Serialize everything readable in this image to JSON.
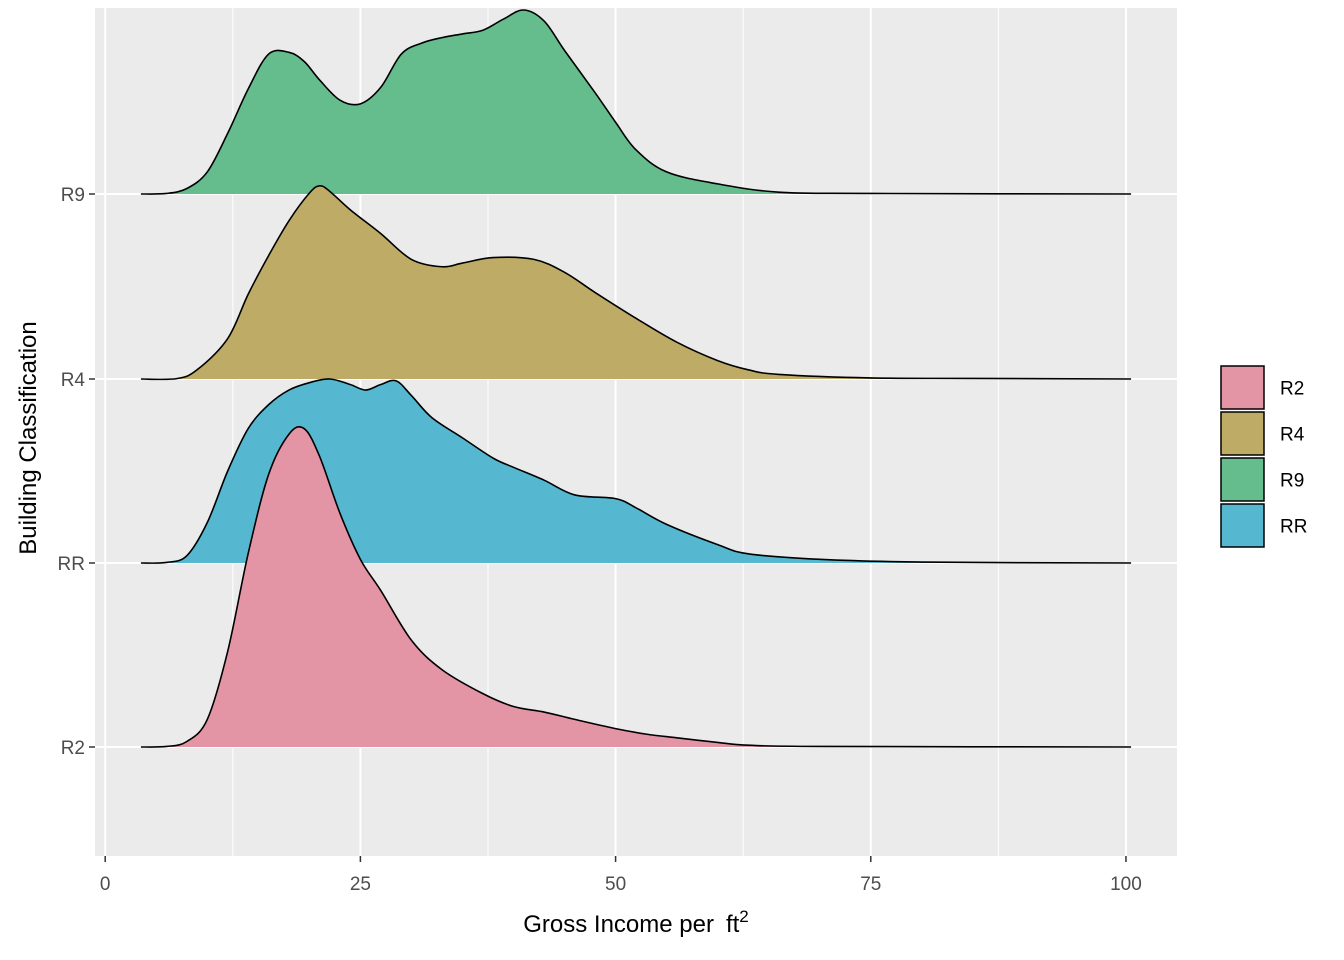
{
  "chart_data": {
    "type": "area",
    "subtype": "ridgeline-density",
    "title": "",
    "xlabel": "Gross Income per",
    "xlabel_unit": "ft",
    "xlabel_superscript": "2",
    "ylabel": "Building Classification",
    "xlim": [
      -1,
      105
    ],
    "x_ticks": [
      0,
      25,
      50,
      75,
      100
    ],
    "x_tick_labels": [
      "0",
      "25",
      "50",
      "75",
      "100"
    ],
    "categories": [
      "R2",
      "RR",
      "R4",
      "R9"
    ],
    "grid": true,
    "legend_position": "right",
    "legend_items": [
      "R2",
      "R4",
      "R9",
      "RR"
    ],
    "colors": {
      "R2": "#E495A5",
      "R4": "#BDAB66",
      "R9": "#65BC8C",
      "RR": "#55B8D0",
      "panel": "#EBEBEB",
      "grid": "#FFFFFF",
      "outline": "#000000"
    },
    "draw_order": [
      "R9",
      "R4",
      "RR",
      "R2"
    ],
    "series": [
      {
        "name": "R9",
        "baseline": "R9",
        "x": [
          3.5,
          6,
          8,
          10,
          12,
          14,
          16,
          18,
          19.5,
          21,
          23,
          25,
          27,
          29,
          31,
          33,
          35,
          37,
          39,
          41,
          43,
          45,
          48,
          50,
          52,
          55,
          60,
          66,
          75,
          100.5
        ],
        "y": [
          0,
          0.003,
          0.03,
          0.12,
          0.33,
          0.57,
          0.76,
          0.77,
          0.72,
          0.62,
          0.51,
          0.49,
          0.58,
          0.76,
          0.82,
          0.85,
          0.87,
          0.89,
          0.95,
          1.0,
          0.94,
          0.78,
          0.55,
          0.39,
          0.24,
          0.12,
          0.055,
          0.01,
          0.003,
          0
        ]
      },
      {
        "name": "R4",
        "baseline": "R4",
        "x": [
          3.5,
          7,
          9,
          12,
          14,
          16,
          18,
          20,
          21,
          22,
          24,
          27,
          30,
          33,
          35,
          38,
          42,
          45,
          48,
          52,
          56,
          60,
          63,
          66,
          75,
          85,
          100.5
        ],
        "y": [
          0,
          0.002,
          0.05,
          0.22,
          0.46,
          0.67,
          0.86,
          1.01,
          1.05,
          1.02,
          0.92,
          0.79,
          0.65,
          0.61,
          0.63,
          0.66,
          0.65,
          0.58,
          0.47,
          0.33,
          0.2,
          0.1,
          0.05,
          0.025,
          0.006,
          0.003,
          0
        ]
      },
      {
        "name": "RR",
        "baseline": "RR",
        "x": [
          3.5,
          6,
          8,
          10,
          12,
          14,
          16,
          18,
          20,
          22,
          24,
          25.5,
          27,
          28.5,
          30,
          32,
          35,
          38,
          40,
          43,
          46,
          50,
          52,
          55,
          60,
          63,
          70,
          80,
          100.5
        ],
        "y": [
          0,
          0.003,
          0.04,
          0.22,
          0.5,
          0.73,
          0.86,
          0.94,
          0.98,
          1.0,
          0.97,
          0.94,
          0.97,
          0.99,
          0.91,
          0.79,
          0.68,
          0.57,
          0.52,
          0.45,
          0.37,
          0.35,
          0.3,
          0.21,
          0.1,
          0.05,
          0.02,
          0.005,
          0
        ]
      },
      {
        "name": "R2",
        "baseline": "R2",
        "x": [
          3.5,
          6,
          8,
          10,
          12,
          14,
          16,
          18,
          19.5,
          21,
          23,
          25,
          27,
          30,
          33,
          37,
          40,
          43,
          46,
          50,
          53,
          56,
          60,
          63,
          70,
          100.5
        ],
        "y": [
          0,
          0.003,
          0.03,
          0.15,
          0.52,
          1.05,
          1.48,
          1.7,
          1.73,
          1.58,
          1.27,
          1.02,
          0.85,
          0.58,
          0.42,
          0.29,
          0.22,
          0.19,
          0.15,
          0.1,
          0.07,
          0.05,
          0.025,
          0.01,
          0.003,
          0
        ]
      }
    ]
  }
}
